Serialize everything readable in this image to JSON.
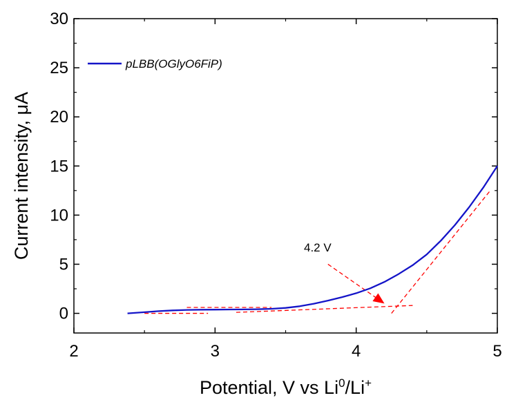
{
  "chart_data": {
    "type": "line",
    "xlabel": "Potential, V  vs Li",
    "xlabel_sup1": "0",
    "xlabel_mid": "/Li",
    "xlabel_sup2": "+",
    "ylabel": "Current intensity, μA",
    "xlim": [
      2,
      5
    ],
    "ylim": [
      -2,
      30
    ],
    "x_ticks": [
      "2",
      "3",
      "4",
      "5"
    ],
    "y_ticks": [
      "0",
      "5",
      "10",
      "15",
      "20",
      "25",
      "30"
    ],
    "x_tick_values": [
      2,
      3,
      4,
      5
    ],
    "y_tick_values": [
      0,
      5,
      10,
      15,
      20,
      25,
      30
    ],
    "grid": false,
    "legend_position": "top-left",
    "series": [
      {
        "name": "pLBB(OGlyO6FiP)",
        "color": "#1414c8",
        "x": [
          2.38,
          2.5,
          2.6,
          2.7,
          2.8,
          2.9,
          3.0,
          3.1,
          3.2,
          3.3,
          3.4,
          3.5,
          3.6,
          3.7,
          3.8,
          3.9,
          4.0,
          4.1,
          4.2,
          4.3,
          4.4,
          4.5,
          4.6,
          4.7,
          4.8,
          4.9,
          5.0
        ],
        "y": [
          0.0,
          0.12,
          0.22,
          0.3,
          0.35,
          0.37,
          0.38,
          0.39,
          0.4,
          0.42,
          0.46,
          0.55,
          0.72,
          0.98,
          1.3,
          1.65,
          2.05,
          2.55,
          3.2,
          4.0,
          4.9,
          6.0,
          7.4,
          9.0,
          10.8,
          12.8,
          15.0
        ]
      }
    ],
    "annotations": [
      {
        "text": "4.2 V",
        "color": "#000000"
      }
    ],
    "construction_lines": {
      "color": "#ff0000",
      "segments": [
        {
          "x": [
            2.5,
            2.95
          ],
          "y": [
            0.0,
            0.0
          ]
        },
        {
          "x": [
            2.8,
            3.4
          ],
          "y": [
            0.6,
            0.6
          ]
        },
        {
          "x": [
            3.15,
            4.4
          ],
          "y": [
            0.1,
            0.8
          ]
        },
        {
          "x": [
            4.25,
            4.95
          ],
          "y": [
            0.0,
            12.5
          ]
        },
        {
          "x": [
            3.8,
            4.2
          ],
          "y": [
            5.0,
            1.0
          ]
        }
      ]
    }
  }
}
